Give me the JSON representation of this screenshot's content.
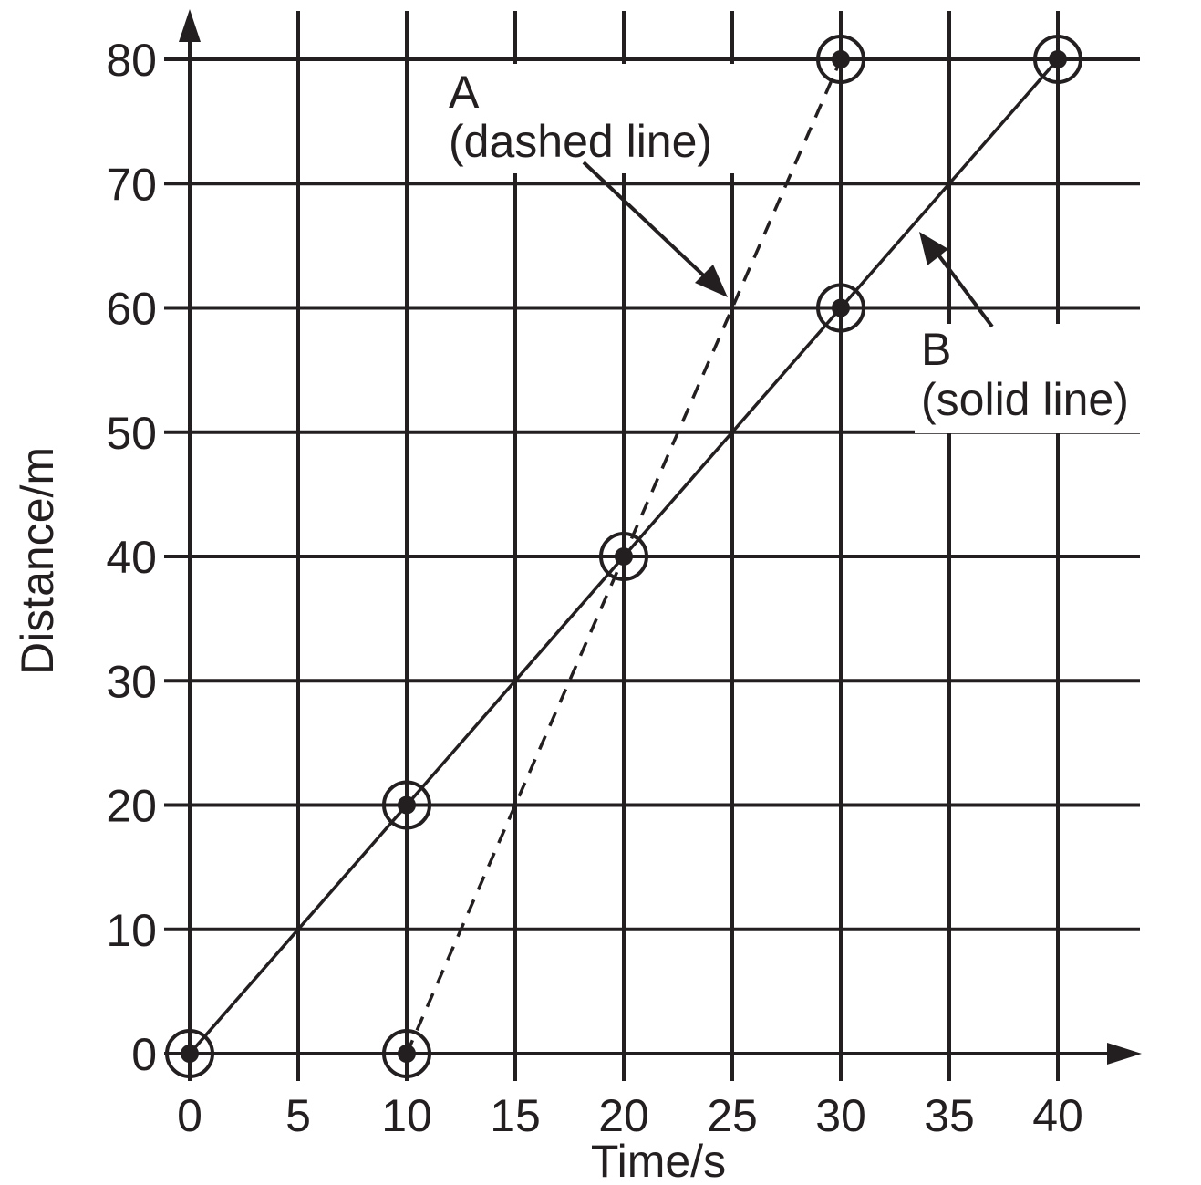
{
  "chart_data": {
    "type": "line",
    "title": "",
    "xlabel": "Time/s",
    "ylabel": "Distance/m",
    "xlim": [
      0,
      40
    ],
    "ylim": [
      0,
      80
    ],
    "x_ticks": [
      0,
      5,
      10,
      15,
      20,
      25,
      30,
      35,
      40
    ],
    "y_ticks": [
      0,
      10,
      20,
      30,
      40,
      50,
      60,
      70,
      80
    ],
    "grid": true,
    "legend": "none",
    "series": [
      {
        "label": "A",
        "style_note": "(dashed line)",
        "line_style": "dashed",
        "points": [
          [
            10,
            0
          ],
          [
            20,
            40
          ],
          [
            30,
            80
          ]
        ]
      },
      {
        "label": "B",
        "style_note": "(solid line)",
        "line_style": "solid",
        "points": [
          [
            0,
            0
          ],
          [
            10,
            20
          ],
          [
            20,
            40
          ],
          [
            30,
            60
          ],
          [
            40,
            80
          ]
        ]
      }
    ],
    "annotations": [
      {
        "series": "A",
        "line1": "A",
        "line2": "(dashed line)",
        "points_to": [
          25,
          60
        ]
      },
      {
        "series": "B",
        "line1": "B",
        "line2": "(solid line)",
        "points_to": [
          33.5,
          66
        ]
      }
    ],
    "colors": {
      "ink": "#231f20",
      "background": "#ffffff"
    }
  }
}
